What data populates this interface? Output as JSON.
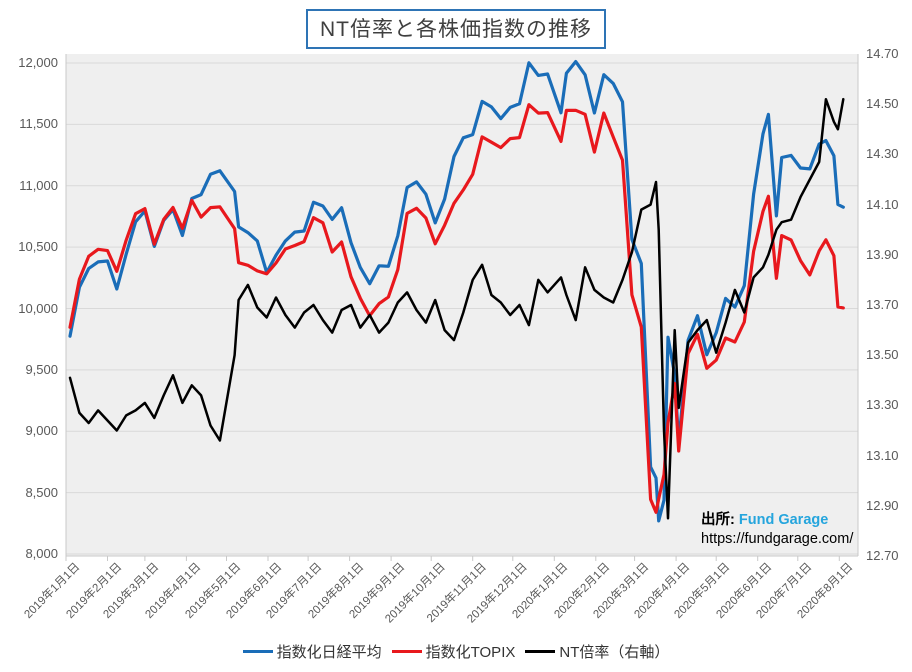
{
  "title": "NT倍率と各株価指数の推移",
  "source_note": {
    "label": "出所:",
    "name": "Fund Garage",
    "url": "https://fundgarage.com/"
  },
  "colors": {
    "nikkei": "#1a6db8",
    "topix": "#e8181d",
    "nt": "#000000",
    "title_border": "#2e74b5",
    "source_link": "#25a5dd",
    "grid": "#d9d9d9",
    "axis_line": "#c9c9c9",
    "plot_bg": "#efefef",
    "axis_text": "#595959"
  },
  "legend": [
    {
      "label": "指数化日経平均",
      "color_key": "nikkei"
    },
    {
      "label": "指数化TOPIX",
      "color_key": "topix"
    },
    {
      "label": "NT倍率（右軸）",
      "color_key": "nt"
    }
  ],
  "chart_data": {
    "type": "line",
    "grid": "horizontal",
    "legend_position": "bottom",
    "x_domain": [
      "2019-01-01",
      "2020-08-15"
    ],
    "axes": {
      "left": {
        "min": 8000,
        "max": 12000,
        "step": 500,
        "tick_values": [
          12000,
          11500,
          11000,
          10500,
          10000,
          9500,
          9000,
          8500,
          8000
        ],
        "tick_labels": [
          "12,000",
          "11,500",
          "11,000",
          "10,500",
          "10,000",
          "9,500",
          "9,000",
          "8,500",
          "8,000"
        ]
      },
      "right": {
        "min": 12.7,
        "max": 14.7,
        "step": 0.2,
        "tick_values": [
          14.7,
          14.5,
          14.3,
          14.1,
          13.9,
          13.7,
          13.5,
          13.3,
          13.1,
          12.9,
          12.7
        ],
        "tick_labels": [
          "14.70",
          "14.50",
          "14.30",
          "14.10",
          "13.90",
          "13.70",
          "13.50",
          "13.30",
          "13.10",
          "12.90",
          "12.70"
        ]
      }
    },
    "x_ticks": [
      {
        "date": "2019-01-01",
        "label": "2019年1月1日"
      },
      {
        "date": "2019-02-01",
        "label": "2019年2月1日"
      },
      {
        "date": "2019-03-01",
        "label": "2019年3月1日"
      },
      {
        "date": "2019-04-01",
        "label": "2019年4月1日"
      },
      {
        "date": "2019-05-01",
        "label": "2019年5月1日"
      },
      {
        "date": "2019-06-01",
        "label": "2019年6月1日"
      },
      {
        "date": "2019-07-01",
        "label": "2019年7月1日"
      },
      {
        "date": "2019-08-01",
        "label": "2019年8月1日"
      },
      {
        "date": "2019-09-01",
        "label": "2019年9月1日"
      },
      {
        "date": "2019-10-01",
        "label": "2019年10月1日"
      },
      {
        "date": "2019-11-01",
        "label": "2019年11月1日"
      },
      {
        "date": "2019-12-01",
        "label": "2019年12月1日"
      },
      {
        "date": "2020-01-01",
        "label": "2020年1月1日"
      },
      {
        "date": "2020-02-01",
        "label": "2020年2月1日"
      },
      {
        "date": "2020-03-01",
        "label": "2020年3月1日"
      },
      {
        "date": "2020-04-01",
        "label": "2020年4月1日"
      },
      {
        "date": "2020-05-01",
        "label": "2020年5月1日"
      },
      {
        "date": "2020-06-01",
        "label": "2020年6月1日"
      },
      {
        "date": "2020-07-01",
        "label": "2020年7月1日"
      },
      {
        "date": "2020-08-01",
        "label": "2020年8月1日"
      }
    ],
    "x": [
      "2019-01-04",
      "2019-01-11",
      "2019-01-18",
      "2019-01-25",
      "2019-02-01",
      "2019-02-08",
      "2019-02-15",
      "2019-02-22",
      "2019-03-01",
      "2019-03-08",
      "2019-03-15",
      "2019-03-22",
      "2019-03-29",
      "2019-04-05",
      "2019-04-12",
      "2019-04-19",
      "2019-04-26",
      "2019-05-07",
      "2019-05-10",
      "2019-05-17",
      "2019-05-24",
      "2019-05-31",
      "2019-06-07",
      "2019-06-14",
      "2019-06-21",
      "2019-06-28",
      "2019-07-05",
      "2019-07-12",
      "2019-07-19",
      "2019-07-26",
      "2019-08-02",
      "2019-08-09",
      "2019-08-16",
      "2019-08-23",
      "2019-08-30",
      "2019-09-06",
      "2019-09-13",
      "2019-09-20",
      "2019-09-27",
      "2019-10-04",
      "2019-10-11",
      "2019-10-18",
      "2019-10-25",
      "2019-11-01",
      "2019-11-08",
      "2019-11-15",
      "2019-11-22",
      "2019-11-29",
      "2019-12-06",
      "2019-12-13",
      "2019-12-20",
      "2019-12-27",
      "2020-01-06",
      "2020-01-10",
      "2020-01-17",
      "2020-01-24",
      "2020-01-31",
      "2020-02-07",
      "2020-02-14",
      "2020-02-21",
      "2020-02-28",
      "2020-03-06",
      "2020-03-13",
      "2020-03-17",
      "2020-03-19",
      "2020-03-23",
      "2020-03-26",
      "2020-03-31",
      "2020-04-03",
      "2020-04-10",
      "2020-04-17",
      "2020-04-24",
      "2020-05-01",
      "2020-05-08",
      "2020-05-15",
      "2020-05-22",
      "2020-05-29",
      "2020-06-05",
      "2020-06-09",
      "2020-06-15",
      "2020-06-19",
      "2020-06-26",
      "2020-07-03",
      "2020-07-10",
      "2020-07-17",
      "2020-07-22",
      "2020-07-28",
      "2020-07-31",
      "2020-08-04"
    ],
    "series": [
      {
        "key": "nikkei",
        "name": "指数化日経平均",
        "axis": "left",
        "color_key": "nikkei",
        "values": [
          9774,
          10173,
          10326,
          10380,
          10387,
          10159,
          10443,
          10706,
          10794,
          10506,
          10718,
          10806,
          10595,
          10896,
          10928,
          11093,
          11122,
          10953,
          10665,
          10618,
          10551,
          10293,
          10434,
          10551,
          10622,
          10631,
          10865,
          10835,
          10726,
          10821,
          10536,
          10335,
          10202,
          10348,
          10344,
          10592,
          10986,
          11031,
          10931,
          10697,
          10891,
          11238,
          11391,
          11417,
          11687,
          11642,
          11547,
          11638,
          11668,
          12002,
          11899,
          11910,
          11594,
          11916,
          12011,
          11904,
          11593,
          11905,
          11834,
          11684,
          10563,
          10367,
          8709,
          8620,
          8270,
          8438,
          9766,
          9459,
          8903,
          9742,
          9941,
          9624,
          9802,
          10082,
          10011,
          10186,
          10930,
          11423,
          11581,
          10754,
          11230,
          11247,
          11145,
          11137,
          11340,
          11368,
          11245,
          10847,
          10825
        ]
      },
      {
        "key": "topix",
        "name": "指数化TOPIX",
        "axis": "left",
        "color_key": "topix",
        "values": [
          9847,
          10239,
          10425,
          10482,
          10472,
          10303,
          10557,
          10772,
          10814,
          10524,
          10726,
          10823,
          10653,
          10881,
          10745,
          10822,
          10828,
          10651,
          10373,
          10352,
          10306,
          10283,
          10371,
          10485,
          10513,
          10545,
          10740,
          10698,
          10460,
          10542,
          10258,
          10084,
          9941,
          10040,
          10094,
          10317,
          10775,
          10816,
          10737,
          10527,
          10678,
          10857,
          10966,
          11093,
          11398,
          11355,
          11311,
          11384,
          11392,
          11660,
          11592,
          11596,
          11361,
          11614,
          11615,
          11582,
          11274,
          11593,
          11398,
          11208,
          10112,
          9849,
          8445,
          8340,
          8450,
          8647,
          9069,
          9390,
          8839,
          9633,
          9790,
          9513,
          9580,
          9760,
          9727,
          9890,
          10465,
          10792,
          10914,
          10246,
          10594,
          10558,
          10390,
          10274,
          10470,
          10560,
          10430,
          10013,
          10005
        ]
      },
      {
        "key": "nt",
        "name": "NT倍率（右軸）",
        "axis": "right",
        "color_key": "nt",
        "values": [
          13.41,
          13.27,
          13.23,
          13.28,
          13.24,
          13.2,
          13.26,
          13.28,
          13.31,
          13.25,
          13.34,
          13.42,
          13.31,
          13.38,
          13.34,
          13.22,
          13.16,
          13.5,
          13.72,
          13.78,
          13.69,
          13.65,
          13.73,
          13.66,
          13.61,
          13.67,
          13.7,
          13.64,
          13.59,
          13.68,
          13.7,
          13.61,
          13.66,
          13.59,
          13.63,
          13.71,
          13.75,
          13.68,
          13.63,
          13.72,
          13.6,
          13.56,
          13.67,
          13.8,
          13.86,
          13.74,
          13.71,
          13.66,
          13.7,
          13.62,
          13.8,
          13.75,
          13.81,
          13.74,
          13.64,
          13.85,
          13.76,
          13.73,
          13.71,
          13.8,
          13.91,
          14.08,
          14.1,
          14.19,
          14.0,
          13.2,
          12.85,
          13.6,
          13.29,
          13.55,
          13.6,
          13.64,
          13.51,
          13.63,
          13.76,
          13.67,
          13.81,
          13.85,
          13.9,
          14.0,
          14.03,
          14.04,
          14.13,
          14.2,
          14.27,
          14.52,
          14.43,
          14.4,
          14.52
        ]
      }
    ]
  }
}
